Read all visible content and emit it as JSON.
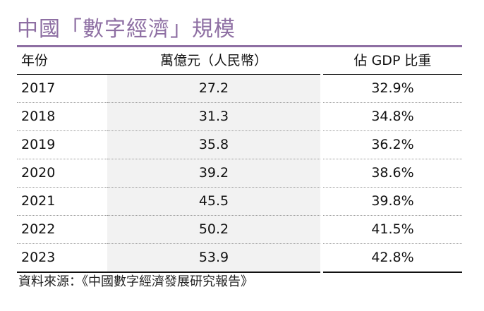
{
  "title": "中國「數字經濟」規模",
  "table": {
    "headers": [
      "年份",
      "萬億元（人民幣）",
      "佔 GDP 比重"
    ],
    "rows": [
      {
        "year": "2017",
        "value": "27.2",
        "share": "32.9%"
      },
      {
        "year": "2018",
        "value": "31.3",
        "share": "34.8%"
      },
      {
        "year": "2019",
        "value": "35.8",
        "share": "36.2%"
      },
      {
        "year": "2020",
        "value": "39.2",
        "share": "38.6%"
      },
      {
        "year": "2021",
        "value": "45.5",
        "share": "39.8%"
      },
      {
        "year": "2022",
        "value": "50.2",
        "share": "41.5%"
      },
      {
        "year": "2023",
        "value": "53.9",
        "share": "42.8%"
      }
    ]
  },
  "source": "資料來源：《中國數字經濟發展研究報告》",
  "colors": {
    "title": "#8e6fa3",
    "shaded_column": "#f2f2f2",
    "rule": "#111111"
  }
}
